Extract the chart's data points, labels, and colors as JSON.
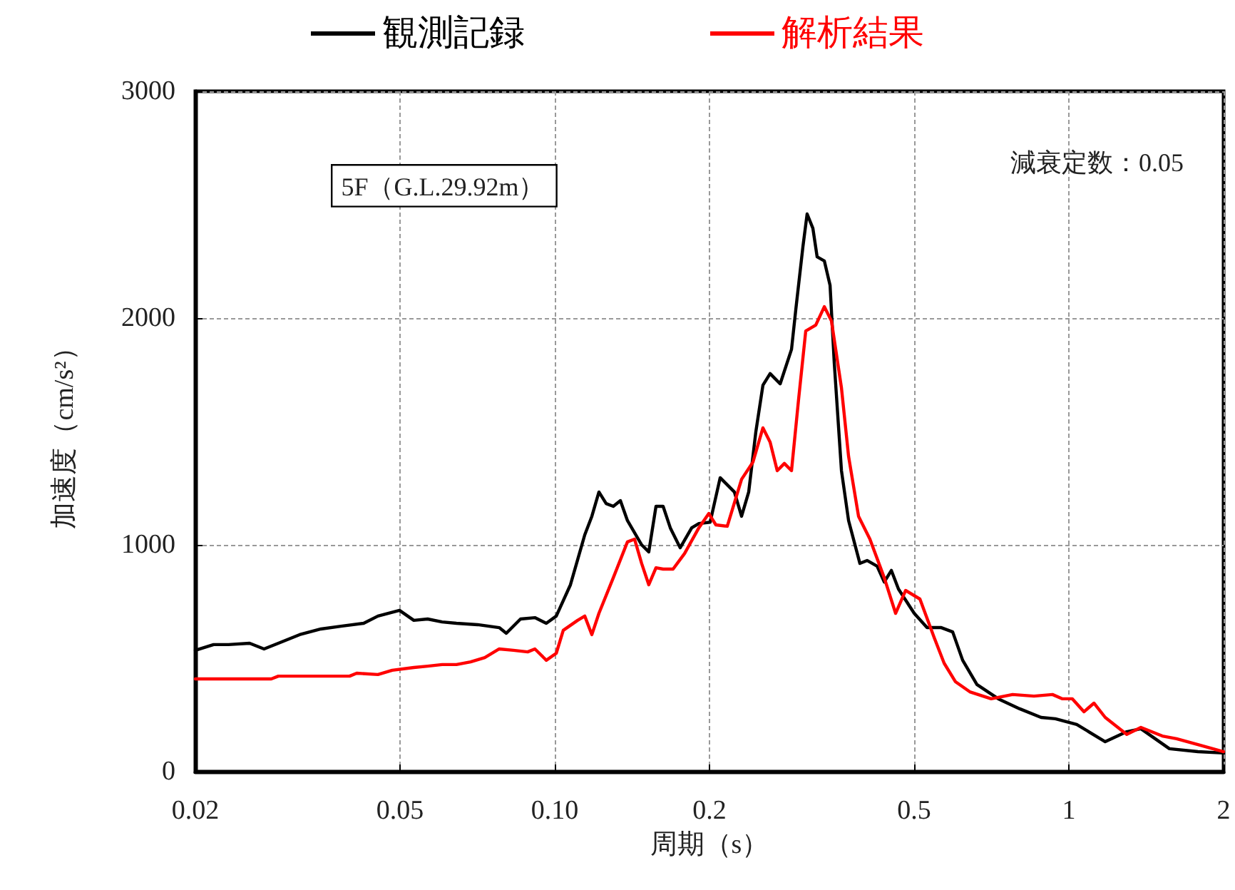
{
  "chart_data": {
    "type": "line",
    "xlabel": "周期（s）",
    "ylabel": "加速度（cm/s²）",
    "annotations": [
      "5F（G.L.29.92m）",
      "減衰定数：0.05"
    ],
    "log": "x",
    "xlim": [
      0.02,
      2
    ],
    "xticks": [
      {
        "value": 0.02,
        "label": "0.02"
      },
      {
        "value": 0.05,
        "label": "0.05"
      },
      {
        "value": 0.1,
        "label": "0.10"
      },
      {
        "value": 0.2,
        "label": "0.2"
      },
      {
        "value": 0.5,
        "label": "0.5"
      },
      1,
      2
    ],
    "ylim": [
      0,
      3000
    ],
    "yticks": [
      0,
      1000,
      2000,
      3000
    ],
    "grid": true,
    "legend": "top",
    "marker": "none",
    "line_style": "solid",
    "series": [
      {
        "name": "観測記録",
        "color": "#000000",
        "x": [
          0.02,
          0.0217,
          0.0232,
          0.0255,
          0.0272,
          0.029,
          0.0319,
          0.0351,
          0.0386,
          0.0425,
          0.0453,
          0.0499,
          0.0532,
          0.0566,
          0.0604,
          0.0644,
          0.0708,
          0.078,
          0.0805,
          0.0858,
          0.0915,
          0.0963,
          0.1007,
          0.1073,
          0.1144,
          0.1181,
          0.1219,
          0.1259,
          0.13,
          0.1342,
          0.1385,
          0.1476,
          0.1524,
          0.1574,
          0.1625,
          0.1678,
          0.1754,
          0.1847,
          0.1907,
          0.2006,
          0.2098,
          0.2236,
          0.2309,
          0.2384,
          0.2461,
          0.2541,
          0.2624,
          0.2745,
          0.2888,
          0.2944,
          0.3039,
          0.3097,
          0.3178,
          0.3239,
          0.3345,
          0.3432,
          0.3498,
          0.3612,
          0.3729,
          0.3923,
          0.4051,
          0.4237,
          0.4375,
          0.4517,
          0.4663,
          0.5003,
          0.5299,
          0.5649,
          0.5944,
          0.6216,
          0.6626,
          0.7292,
          0.8025,
          0.8831,
          0.9414,
          1.036,
          1.177,
          1.296,
          1.381,
          1.472,
          1.569,
          1.783,
          2.0
        ],
        "values": [
          535,
          560,
          560,
          566,
          541,
          566,
          604,
          629,
          642,
          654,
          686,
          711,
          667,
          673,
          660,
          654,
          648,
          635,
          610,
          673,
          679,
          654,
          686,
          824,
          1044,
          1126,
          1233,
          1182,
          1170,
          1195,
          1107,
          1000,
          969,
          1170,
          1170,
          1075,
          987,
          1075,
          1094,
          1100,
          1296,
          1233,
          1126,
          1233,
          1497,
          1704,
          1755,
          1710,
          1862,
          2038,
          2314,
          2459,
          2396,
          2270,
          2252,
          2145,
          1799,
          1327,
          1107,
          918,
          931,
          906,
          836,
          887,
          805,
          698,
          635,
          635,
          616,
          491,
          384,
          321,
          277,
          239,
          233,
          208,
          132,
          176,
          189,
          145,
          101,
          88,
          82
        ]
      },
      {
        "name": "解析結果",
        "color": "#ff0000",
        "x": [
          0.02,
          0.0281,
          0.029,
          0.0362,
          0.0399,
          0.0412,
          0.0453,
          0.0483,
          0.0532,
          0.0566,
          0.0604,
          0.0644,
          0.0686,
          0.0731,
          0.078,
          0.0831,
          0.0886,
          0.0915,
          0.0963,
          0.1007,
          0.1039,
          0.1108,
          0.1144,
          0.1181,
          0.1219,
          0.13,
          0.1385,
          0.143,
          0.1476,
          0.1524,
          0.1574,
          0.1625,
          0.1699,
          0.1789,
          0.1907,
          0.1994,
          0.2058,
          0.2166,
          0.2309,
          0.243,
          0.2541,
          0.2624,
          0.2709,
          0.2797,
          0.2888,
          0.2981,
          0.3078,
          0.3219,
          0.3345,
          0.3454,
          0.3612,
          0.3729,
          0.3899,
          0.4103,
          0.4375,
          0.4603,
          0.4815,
          0.5133,
          0.5471,
          0.5721,
          0.602,
          0.6417,
          0.7063,
          0.7774,
          0.8554,
          0.9294,
          0.972,
          1.016,
          1.07,
          1.119,
          1.177,
          1.296,
          1.381,
          1.52,
          1.62,
          1.783,
          2.0
        ],
        "values": [
          409,
          409,
          421,
          421,
          421,
          434,
          428,
          447,
          459,
          465,
          472,
          472,
          484,
          503,
          541,
          535,
          528,
          541,
          491,
          522,
          623,
          667,
          686,
          604,
          698,
          855,
          1013,
          1025,
          918,
          824,
          899,
          893,
          893,
          962,
          1075,
          1138,
          1088,
          1082,
          1289,
          1365,
          1516,
          1453,
          1327,
          1359,
          1327,
          1642,
          1943,
          1969,
          2050,
          1987,
          1692,
          1390,
          1126,
          1025,
          855,
          698,
          799,
          761,
          591,
          478,
          396,
          352,
          321,
          340,
          333,
          340,
          321,
          321,
          264,
          302,
          239,
          164,
          195,
          157,
          145,
          119,
          88
        ]
      }
    ]
  }
}
